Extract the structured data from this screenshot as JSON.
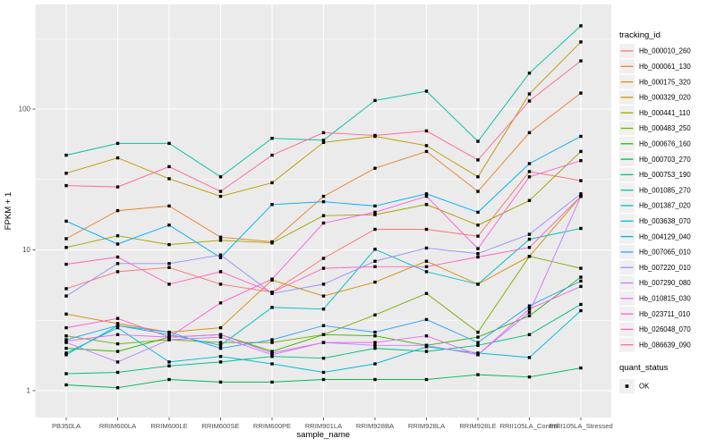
{
  "chart_data": {
    "type": "line",
    "title": "",
    "xlabel": "sample_name",
    "ylabel": "FPKM + 1",
    "y_scale": "log10",
    "grid": true,
    "legend_position": "right",
    "legend_title": "tracking_id",
    "y_ticks": [
      1,
      10,
      100
    ],
    "y_tick_labels": [
      "1",
      "10",
      "100"
    ],
    "y_minor_ticks": [
      3.162,
      31.62,
      316.2
    ],
    "ylim": [
      0.95,
      520
    ],
    "marker": "square",
    "marker_color": "#000000",
    "categories": [
      "PB350LA",
      "RRIM600LA",
      "RRIM600LE",
      "RRIM600SE",
      "RRIM600PE",
      "RRIM901LA",
      "RRIM928BA",
      "RRIM928LA",
      "RRIM928LE",
      "RRII105LA_Control",
      "RRII105LA_Stressed"
    ],
    "series": [
      {
        "name": "Hb_000010_260",
        "color": "#F8766D",
        "values": [
          5.3,
          7.0,
          7.5,
          5.7,
          5.0,
          8.7,
          14,
          14,
          12.5,
          36,
          31
        ]
      },
      {
        "name": "Hb_000061_130",
        "color": "#EA8331",
        "values": [
          12,
          19,
          20.5,
          12.3,
          11.4,
          24,
          38,
          50,
          26,
          68,
          130
        ]
      },
      {
        "name": "Hb_000175_320",
        "color": "#D89000",
        "values": [
          3.5,
          3.0,
          2.6,
          2.8,
          6.1,
          4.7,
          5.9,
          8.3,
          5.7,
          9.0,
          24
        ]
      },
      {
        "name": "Hb_000329_020",
        "color": "#C09B00",
        "values": [
          35,
          45,
          32,
          24,
          30,
          58,
          64,
          55,
          33,
          128,
          300
        ]
      },
      {
        "name": "Hb_000441_110",
        "color": "#A3A500",
        "values": [
          10.4,
          12.6,
          10.9,
          11.7,
          11.2,
          17.5,
          17.8,
          21,
          15,
          22.4,
          50
        ]
      },
      {
        "name": "Hb_000483_250",
        "color": "#7CAE00",
        "values": [
          2.45,
          2.15,
          2.3,
          2.2,
          2.2,
          2.5,
          3.45,
          4.9,
          2.6,
          9.0,
          7.4
        ]
      },
      {
        "name": "Hb_000676_160",
        "color": "#39B600",
        "values": [
          2.0,
          1.9,
          2.4,
          2.5,
          1.9,
          2.5,
          2.45,
          2.1,
          2.4,
          3.4,
          6.4
        ]
      },
      {
        "name": "Hb_000703_270",
        "color": "#00BB4E",
        "values": [
          1.1,
          1.05,
          1.2,
          1.15,
          1.15,
          1.2,
          1.2,
          1.2,
          1.3,
          1.25,
          1.45
        ]
      },
      {
        "name": "Hb_000753_190",
        "color": "#00BF7D",
        "values": [
          1.32,
          1.35,
          1.5,
          1.6,
          1.75,
          1.7,
          2.0,
          1.9,
          2.1,
          2.5,
          4.1
        ]
      },
      {
        "name": "Hb_001085_270",
        "color": "#00C1A3",
        "values": [
          47,
          57,
          57,
          33,
          62,
          60,
          115,
          134,
          59,
          180,
          390
        ]
      },
      {
        "name": "Hb_001387_020",
        "color": "#00BFC4",
        "values": [
          1.8,
          2.9,
          2.5,
          2.1,
          3.9,
          3.8,
          10.1,
          7.0,
          5.7,
          11.9,
          14.2
        ]
      },
      {
        "name": "Hb_003638_070",
        "color": "#00BAE0",
        "values": [
          1.85,
          2.8,
          1.6,
          1.75,
          1.55,
          1.35,
          1.55,
          2.05,
          1.85,
          1.72,
          3.7
        ]
      },
      {
        "name": "Hb_004129_040",
        "color": "#00B0F6",
        "values": [
          16,
          11,
          15,
          8.8,
          21,
          22,
          20.5,
          25,
          18.5,
          41,
          64
        ]
      },
      {
        "name": "Hb_007065_010",
        "color": "#35A2FF",
        "values": [
          2.3,
          2.9,
          2.6,
          2.0,
          2.3,
          2.9,
          2.6,
          3.2,
          2.2,
          4.0,
          6.0
        ]
      },
      {
        "name": "Hb_007220_010",
        "color": "#9590FF",
        "values": [
          4.7,
          8.0,
          8.0,
          9.2,
          4.9,
          5.7,
          8.3,
          10.3,
          9.4,
          12.9,
          25
        ]
      },
      {
        "name": "Hb_007290_080",
        "color": "#C77CFF",
        "values": [
          2.2,
          1.6,
          2.3,
          2.4,
          1.8,
          2.2,
          2.1,
          2.1,
          1.8,
          3.6,
          24
        ]
      },
      {
        "name": "Hb_010815_030",
        "color": "#E76BF3",
        "values": [
          2.25,
          2.5,
          2.4,
          2.5,
          1.85,
          2.2,
          2.2,
          2.45,
          1.8,
          3.8,
          5.5
        ]
      },
      {
        "name": "Hb_023711_010",
        "color": "#FA62DB",
        "values": [
          2.8,
          3.26,
          2.4,
          4.2,
          6.2,
          15.5,
          18.5,
          24,
          10.2,
          33,
          43
        ]
      },
      {
        "name": "Hb_026048_070",
        "color": "#FF62BC",
        "values": [
          7.9,
          8.9,
          5.7,
          7.0,
          5.0,
          7.4,
          7.6,
          7.6,
          8.9,
          10.4,
          24
        ]
      },
      {
        "name": "Hb_086639_090",
        "color": "#FF6A98",
        "values": [
          28.6,
          28,
          39,
          26,
          47,
          68,
          65,
          70,
          43.5,
          114,
          220
        ]
      }
    ],
    "quant_legend": {
      "title": "quant_status",
      "items": [
        {
          "label": "OK",
          "marker": "black-square"
        }
      ]
    }
  },
  "style_colors": {
    "panel_bg": "#EBEBEB",
    "grid": "#FFFFFF",
    "tick_label": "#4D4D4D",
    "axis_title": "#000000",
    "legend_key_bg": "#F0F0F0",
    "tick_mark": "#333333"
  }
}
